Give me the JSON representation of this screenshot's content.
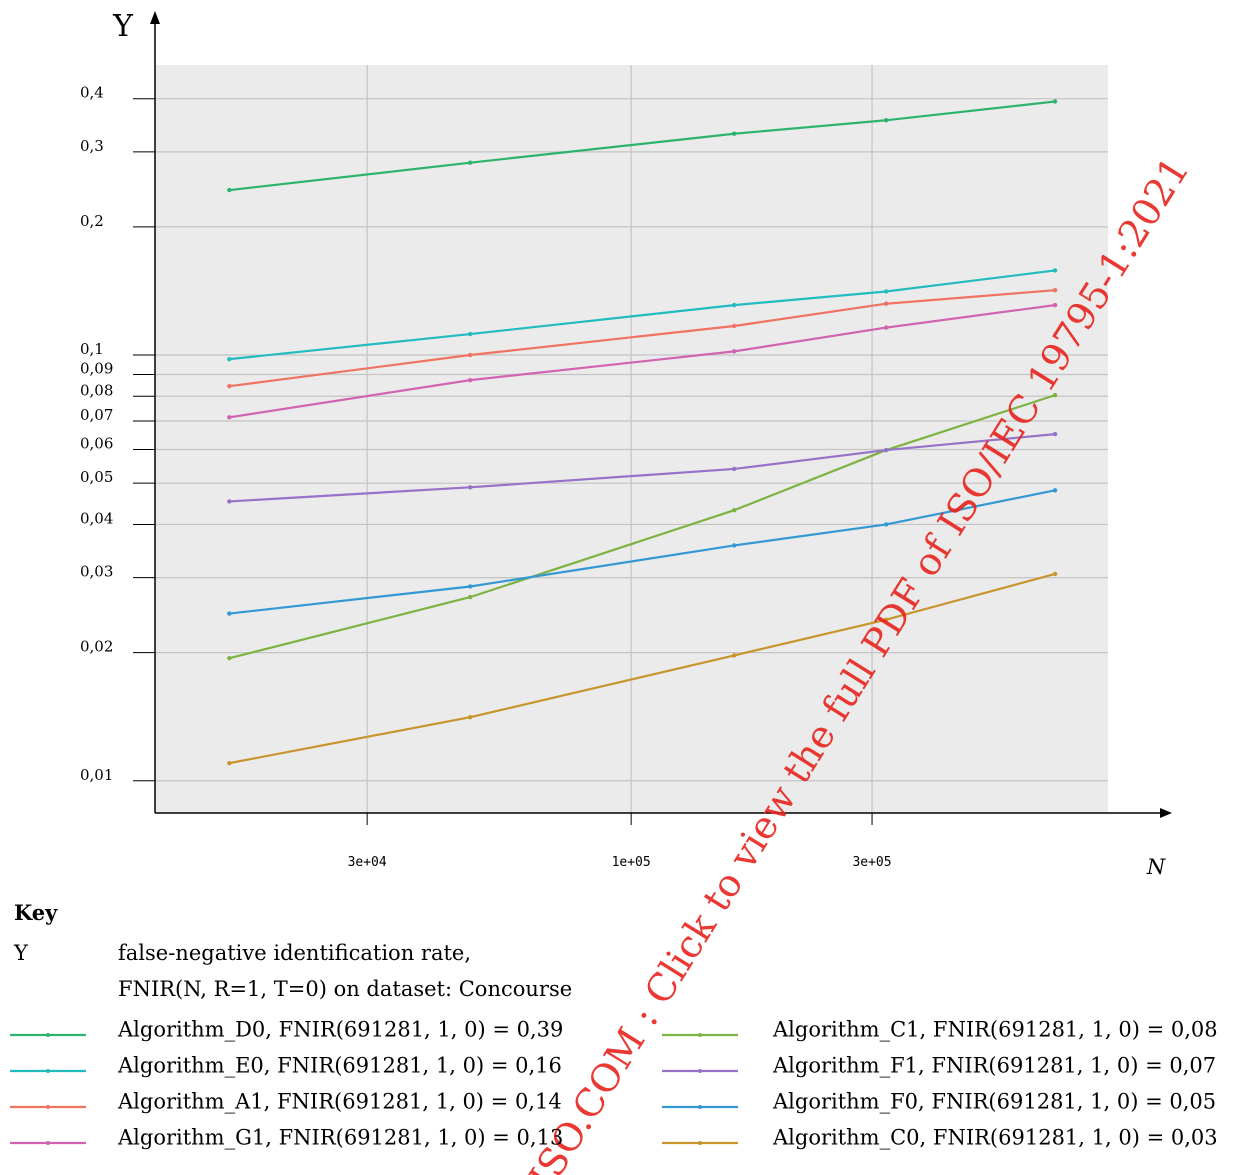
{
  "chart_data": {
    "type": "line",
    "y_label": "Y",
    "x_label": "N",
    "x": [
      16000,
      48000,
      160000,
      320000,
      691281
    ],
    "xlim": [
      11400,
      880000
    ],
    "ylim": [
      0.0084,
      0.48
    ],
    "log_x": true,
    "log_y": true,
    "grid": true,
    "xticks": [
      {
        "value": 30000,
        "label": "3e+04"
      },
      {
        "value": 100000,
        "label": "1e+05"
      },
      {
        "value": 300000,
        "label": "3e+05"
      }
    ],
    "yticks": [
      {
        "value": 0.01,
        "label": "0,01"
      },
      {
        "value": 0.02,
        "label": "0,02"
      },
      {
        "value": 0.03,
        "label": "0,03"
      },
      {
        "value": 0.04,
        "label": "0,04"
      },
      {
        "value": 0.05,
        "label": "0,05"
      },
      {
        "value": 0.06,
        "label": "0,06"
      },
      {
        "value": 0.07,
        "label": "0,07"
      },
      {
        "value": 0.08,
        "label": "0,08"
      },
      {
        "value": 0.09,
        "label": "0,09"
      },
      {
        "value": 0.1,
        "label": "0,1"
      },
      {
        "value": 0.2,
        "label": "0,2"
      },
      {
        "value": 0.3,
        "label": "0,3"
      },
      {
        "value": 0.4,
        "label": "0,4"
      }
    ],
    "series": [
      {
        "name": "Algorithm_D0, FNIR(691281, 1, 0) = 0,39",
        "color": "#2db46c",
        "values": [
          0.244,
          0.283,
          0.331,
          0.356,
          0.394
        ]
      },
      {
        "name": "Algorithm_E0, FNIR(691281, 1, 0) = 0,16",
        "color": "#22bcc0",
        "values": [
          0.0978,
          0.112,
          0.131,
          0.141,
          0.158
        ]
      },
      {
        "name": "Algorithm_A1, FNIR(691281, 1, 0) = 0,14",
        "color": "#f07361",
        "values": [
          0.0845,
          0.1,
          0.117,
          0.132,
          0.142
        ]
      },
      {
        "name": "Algorithm_G1, FNIR(691281, 1, 0) = 0,13",
        "color": "#d263b1",
        "values": [
          0.0714,
          0.0873,
          0.102,
          0.116,
          0.131
        ]
      },
      {
        "name": "Algorithm_C1, FNIR(691281, 1, 0) = 0,08",
        "color": "#7cb342",
        "values": [
          0.0194,
          0.027,
          0.0432,
          0.0598,
          0.0805
        ]
      },
      {
        "name": "Algorithm_F1, FNIR(691281, 1, 0) = 0,07",
        "color": "#9672c8",
        "values": [
          0.0453,
          0.0489,
          0.054,
          0.0598,
          0.0652
        ]
      },
      {
        "name": "Algorithm_F0, FNIR(691281, 1, 0) = 0,05",
        "color": "#3399d4",
        "values": [
          0.0247,
          0.0286,
          0.0357,
          0.04,
          0.0481
        ]
      },
      {
        "name": "Algorithm_C0, FNIR(691281, 1, 0) = 0,03",
        "color": "#c8952c",
        "values": [
          0.011,
          0.0141,
          0.0197,
          0.0239,
          0.0306
        ]
      }
    ]
  },
  "key": {
    "title": "Key",
    "symbol": "Y",
    "description": [
      "false-negative identification rate,",
      "FNIR(N, R=1, T=0) on dataset: Concourse"
    ]
  },
  "watermark": "ISO.COM : Click to view the full PDF of ISO/IEC 19795-1:2021"
}
